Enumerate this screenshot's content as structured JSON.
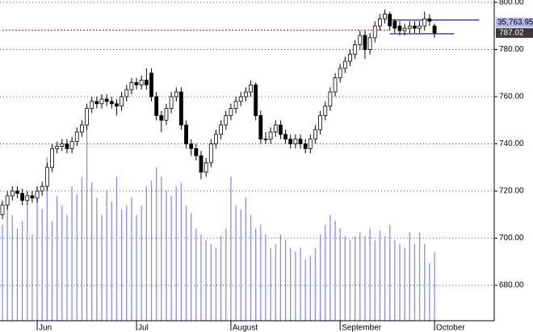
{
  "chart_data": {
    "type": "candlestick",
    "categories": [
      null,
      null,
      null,
      null,
      null,
      null,
      null,
      "Jun",
      null,
      null,
      null,
      null,
      null,
      null,
      null,
      null,
      null,
      null,
      null,
      null,
      null,
      null,
      null,
      null,
      null,
      null,
      null,
      "Jul",
      null,
      null,
      null,
      null,
      null,
      null,
      null,
      null,
      null,
      null,
      null,
      null,
      null,
      null,
      null,
      null,
      null,
      null,
      "August",
      null,
      null,
      null,
      null,
      null,
      null,
      null,
      null,
      null,
      null,
      null,
      null,
      null,
      null,
      null,
      null,
      null,
      null,
      null,
      null,
      null,
      "September",
      null,
      null,
      null,
      null,
      null,
      null,
      null,
      null,
      null,
      null,
      null,
      null,
      null,
      null,
      null,
      null,
      null,
      null,
      "October"
    ],
    "open": [
      710,
      714,
      718,
      720,
      719,
      716,
      718,
      717,
      720,
      722,
      730,
      738,
      739,
      740,
      738,
      741,
      745,
      748,
      755,
      758,
      757,
      759,
      758,
      757,
      756,
      760,
      763,
      766,
      765,
      767,
      770,
      760,
      752,
      750,
      755,
      760,
      762,
      748,
      740,
      738,
      735,
      728,
      732,
      740,
      744,
      748,
      752,
      755,
      758,
      760,
      762,
      765,
      752,
      742,
      742,
      745,
      748,
      744,
      742,
      740,
      742,
      740,
      738,
      742,
      746,
      752,
      756,
      762,
      768,
      772,
      775,
      778,
      782,
      786,
      780,
      785,
      790,
      793,
      795,
      792,
      790,
      788,
      789,
      790,
      789,
      790,
      793,
      790
    ],
    "high": [
      716,
      720,
      722,
      722,
      721,
      720,
      720,
      722,
      724,
      732,
      740,
      741,
      742,
      742,
      743,
      747,
      750,
      757,
      760,
      760,
      761,
      761,
      760,
      759,
      762,
      765,
      768,
      768,
      769,
      772,
      772,
      762,
      754,
      757,
      762,
      764,
      764,
      750,
      742,
      740,
      737,
      734,
      742,
      746,
      750,
      754,
      757,
      760,
      762,
      764,
      767,
      766,
      754,
      745,
      747,
      750,
      750,
      746,
      744,
      744,
      744,
      742,
      744,
      748,
      754,
      758,
      764,
      770,
      774,
      777,
      780,
      784,
      788,
      788,
      787,
      792,
      795,
      797,
      796,
      793,
      792,
      791,
      792,
      792,
      792,
      796,
      795,
      791
    ],
    "low": [
      708,
      712,
      716,
      717,
      714,
      714,
      715,
      715,
      718,
      720,
      728,
      736,
      737,
      736,
      736,
      739,
      743,
      746,
      753,
      755,
      755,
      756,
      755,
      752,
      754,
      758,
      761,
      763,
      763,
      763,
      758,
      750,
      745,
      748,
      753,
      758,
      746,
      738,
      735,
      733,
      725,
      726,
      730,
      738,
      742,
      746,
      750,
      753,
      756,
      758,
      760,
      750,
      740,
      740,
      740,
      743,
      742,
      740,
      738,
      738,
      738,
      736,
      736,
      740,
      744,
      750,
      754,
      760,
      766,
      770,
      773,
      776,
      780,
      776,
      778,
      783,
      788,
      791,
      788,
      787,
      786,
      786,
      787,
      787,
      787,
      788,
      790,
      785
    ],
    "close": [
      714,
      718,
      720,
      719,
      716,
      718,
      717,
      720,
      722,
      730,
      738,
      739,
      740,
      738,
      741,
      745,
      748,
      755,
      758,
      757,
      759,
      758,
      757,
      756,
      760,
      763,
      766,
      765,
      767,
      765,
      760,
      752,
      750,
      755,
      760,
      762,
      748,
      740,
      738,
      735,
      728,
      732,
      740,
      744,
      748,
      752,
      755,
      758,
      760,
      762,
      765,
      752,
      742,
      742,
      745,
      748,
      744,
      742,
      740,
      742,
      740,
      738,
      742,
      746,
      752,
      756,
      762,
      768,
      772,
      775,
      778,
      782,
      786,
      780,
      785,
      790,
      793,
      795,
      790,
      789,
      788,
      789,
      790,
      789,
      790,
      793,
      792,
      787.02
    ],
    "volume": [
      50000,
      62000,
      55000,
      48000,
      52000,
      60000,
      45000,
      70000,
      58000,
      85000,
      52000,
      65000,
      60000,
      55000,
      70000,
      66000,
      75000,
      100000,
      72000,
      64000,
      55000,
      68000,
      62000,
      75000,
      58000,
      60000,
      64000,
      55000,
      60000,
      70000,
      73000,
      80000,
      75000,
      68000,
      65000,
      70000,
      72000,
      60000,
      56000,
      48000,
      45000,
      42000,
      40000,
      38000,
      44000,
      48000,
      75000,
      60000,
      58000,
      64000,
      55000,
      48000,
      50000,
      45000,
      38000,
      40000,
      45000,
      42000,
      38000,
      36000,
      38000,
      32000,
      34000,
      38000,
      45000,
      50000,
      55000,
      52000,
      48000,
      44000,
      42000,
      44000,
      46000,
      44000,
      48000,
      42000,
      47000,
      44000,
      50000,
      42000,
      40000,
      38000,
      46000,
      40000,
      46000,
      40000,
      30000,
      35763.95
    ],
    "volume_label": "35,763.95",
    "vlim": [
      0,
      167000
    ],
    "volume_color": "#8c8ce6",
    "up_color": "#ffffff",
    "down_color": "#000000",
    "ylim": [
      665,
      801
    ],
    "yticks": [
      {
        "value": 680,
        "label": "680.00"
      },
      {
        "value": 700,
        "label": "700.00"
      },
      {
        "value": 720,
        "label": "720.00"
      },
      {
        "value": 740,
        "label": "740.00"
      },
      {
        "value": 760,
        "label": "760.00"
      },
      {
        "value": 780,
        "label": "780.00"
      },
      {
        "value": 800,
        "label": "800.00"
      }
    ],
    "grid": true,
    "levels": [
      {
        "value": 788.2,
        "color": "#e03030",
        "dashed": true,
        "start": 0,
        "end": 78
      },
      {
        "value": 792.5,
        "color": "#2020a0",
        "dashed": false,
        "start": 78,
        "end": 96
      },
      {
        "value": 786.7,
        "color": "#2020a0",
        "dashed": false,
        "start": 78,
        "end": 91
      }
    ]
  }
}
